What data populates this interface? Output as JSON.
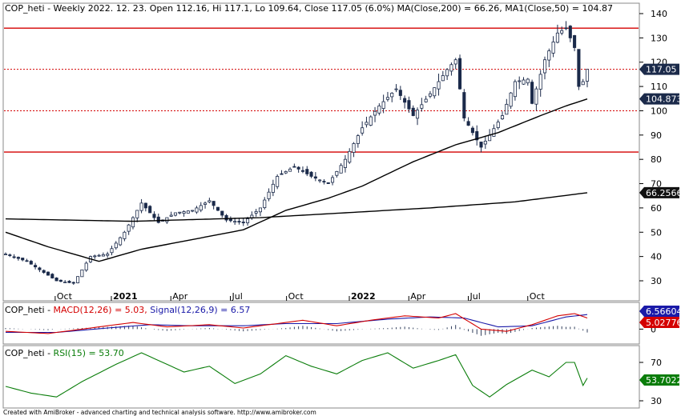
{
  "colors": {
    "hline": "#d40000",
    "candle_up_fill": "#ffffff",
    "candle_down_fill": "#1b2a4a",
    "candle_stroke": "#1b2a4a",
    "ma": "#000000",
    "macd": "#d40000",
    "signal": "#1a1aa8",
    "rsi": "#0a7d0a",
    "tag_dark": "#1b2a4a",
    "tag_red": "#d40000",
    "tag_green": "#0a7d0a"
  },
  "header": {
    "main": "COP_heti - Weekly 2022. 12. 23. Open 112.16, Hi 117.1, Lo 109.64, Close 117.05 (6.0%) MA(Close,200) = 66.26, MA1(Close,50) = 104.87",
    "macd_prefix": "COP_heti - ",
    "macd_label": "MACD(12,26) = 5.03,",
    "signal_label": "Signal(12,26,9) = 6.57",
    "rsi_prefix": "COP_heti - ",
    "rsi_label": "RSI(15) = 53.70"
  },
  "footer": "Created with AmiBroker - advanced charting and technical analysis software. http://www.amibroker.com",
  "price_axis": {
    "ticks": [
      "140",
      "130",
      "120",
      "110",
      "100",
      "90",
      "80",
      "70",
      "60",
      "50",
      "40",
      "30"
    ]
  },
  "macd_axis": {
    "ticks": [
      "0"
    ]
  },
  "rsi_axis": {
    "ticks": [
      "70",
      "30"
    ]
  },
  "x_axis": {
    "labels": [
      "Oct",
      "2021",
      "Apr",
      "Jul",
      "Oct",
      "2022",
      "Apr",
      "Jul",
      "Oct"
    ]
  },
  "tags": {
    "close": "117.05",
    "ma50": "104.873",
    "ma200": "66.2566",
    "signal": "6.56604",
    "macd": "5.02776",
    "rsi": "53.7022"
  },
  "chart_data": {
    "type": "candlestick",
    "timeframe": "weekly",
    "title": "COP_heti - Weekly 2022. 12. 23.",
    "last_bar": {
      "open": 112.16,
      "high": 117.1,
      "low": 109.64,
      "close": 117.05,
      "change_pct": 6.0
    },
    "ylim": [
      24,
      140
    ],
    "horizontal_lines": [
      134,
      117.05,
      100,
      83
    ],
    "anchors": [
      {
        "i": 0,
        "v": 41
      },
      {
        "i": 5,
        "v": 38
      },
      {
        "i": 12,
        "v": 30
      },
      {
        "i": 16,
        "v": 29
      },
      {
        "i": 20,
        "v": 40
      },
      {
        "i": 24,
        "v": 41
      },
      {
        "i": 28,
        "v": 50
      },
      {
        "i": 32,
        "v": 62
      },
      {
        "i": 36,
        "v": 54
      },
      {
        "i": 40,
        "v": 58
      },
      {
        "i": 44,
        "v": 59
      },
      {
        "i": 48,
        "v": 63
      },
      {
        "i": 52,
        "v": 55
      },
      {
        "i": 56,
        "v": 54
      },
      {
        "i": 60,
        "v": 60
      },
      {
        "i": 64,
        "v": 73
      },
      {
        "i": 68,
        "v": 77
      },
      {
        "i": 72,
        "v": 73
      },
      {
        "i": 76,
        "v": 70
      },
      {
        "i": 80,
        "v": 80
      },
      {
        "i": 84,
        "v": 93
      },
      {
        "i": 88,
        "v": 102
      },
      {
        "i": 92,
        "v": 109
      },
      {
        "i": 96,
        "v": 98
      },
      {
        "i": 100,
        "v": 107
      },
      {
        "i": 104,
        "v": 117
      },
      {
        "i": 106,
        "v": 121
      },
      {
        "i": 108,
        "v": 97
      },
      {
        "i": 112,
        "v": 85
      },
      {
        "i": 114,
        "v": 90
      },
      {
        "i": 117,
        "v": 98
      },
      {
        "i": 120,
        "v": 112
      },
      {
        "i": 123,
        "v": 113
      },
      {
        "i": 124,
        "v": 103
      },
      {
        "i": 127,
        "v": 121
      },
      {
        "i": 130,
        "v": 132
      },
      {
        "i": 132,
        "v": 134
      },
      {
        "i": 134,
        "v": 126
      },
      {
        "i": 135,
        "v": 110
      },
      {
        "i": 136,
        "v": 112
      },
      {
        "i": 137,
        "v": 117
      }
    ],
    "ma50_anchors": [
      {
        "i": 0,
        "v": 50
      },
      {
        "i": 10,
        "v": 44
      },
      {
        "i": 22,
        "v": 38
      },
      {
        "i": 32,
        "v": 43
      },
      {
        "i": 44,
        "v": 47
      },
      {
        "i": 56,
        "v": 51
      },
      {
        "i": 66,
        "v": 59
      },
      {
        "i": 76,
        "v": 64
      },
      {
        "i": 84,
        "v": 69
      },
      {
        "i": 96,
        "v": 79
      },
      {
        "i": 106,
        "v": 86
      },
      {
        "i": 116,
        "v": 91
      },
      {
        "i": 126,
        "v": 98
      },
      {
        "i": 132,
        "v": 102
      },
      {
        "i": 137,
        "v": 104.87
      }
    ],
    "ma200_anchors": [
      {
        "i": 0,
        "v": 55.5
      },
      {
        "i": 30,
        "v": 54.5
      },
      {
        "i": 60,
        "v": 56
      },
      {
        "i": 80,
        "v": 58
      },
      {
        "i": 100,
        "v": 60
      },
      {
        "i": 120,
        "v": 62.5
      },
      {
        "i": 137,
        "v": 66.26
      }
    ],
    "macd": {
      "macd": 5.03,
      "signal": 6.57,
      "ylim": [
        -6,
        7
      ]
    },
    "rsi": {
      "period": 15,
      "last": 53.7,
      "ticks": [
        70,
        30
      ]
    },
    "macd_anchors": [
      {
        "i": 0,
        "v": -1
      },
      {
        "i": 10,
        "v": -2
      },
      {
        "i": 20,
        "v": 0.5
      },
      {
        "i": 30,
        "v": 3
      },
      {
        "i": 38,
        "v": 1
      },
      {
        "i": 48,
        "v": 2
      },
      {
        "i": 56,
        "v": 0.5
      },
      {
        "i": 64,
        "v": 2.5
      },
      {
        "i": 70,
        "v": 4
      },
      {
        "i": 78,
        "v": 1.5
      },
      {
        "i": 86,
        "v": 4
      },
      {
        "i": 94,
        "v": 6
      },
      {
        "i": 102,
        "v": 5
      },
      {
        "i": 106,
        "v": 7
      },
      {
        "i": 112,
        "v": 0
      },
      {
        "i": 118,
        "v": -1
      },
      {
        "i": 124,
        "v": 2
      },
      {
        "i": 130,
        "v": 6
      },
      {
        "i": 134,
        "v": 7
      },
      {
        "i": 137,
        "v": 5.03
      }
    ],
    "signal_anchors": [
      {
        "i": 0,
        "v": -1.5
      },
      {
        "i": 12,
        "v": -1.5
      },
      {
        "i": 24,
        "v": 0.5
      },
      {
        "i": 34,
        "v": 2
      },
      {
        "i": 44,
        "v": 1.5
      },
      {
        "i": 56,
        "v": 1.5
      },
      {
        "i": 66,
        "v": 2.5
      },
      {
        "i": 78,
        "v": 2.5
      },
      {
        "i": 90,
        "v": 4.5
      },
      {
        "i": 100,
        "v": 5.5
      },
      {
        "i": 108,
        "v": 5
      },
      {
        "i": 116,
        "v": 1
      },
      {
        "i": 124,
        "v": 1.5
      },
      {
        "i": 132,
        "v": 5.5
      },
      {
        "i": 137,
        "v": 6.57
      }
    ],
    "rsi_anchors": [
      {
        "i": 0,
        "v": 45
      },
      {
        "i": 6,
        "v": 38
      },
      {
        "i": 12,
        "v": 34
      },
      {
        "i": 18,
        "v": 50
      },
      {
        "i": 26,
        "v": 68
      },
      {
        "i": 32,
        "v": 80
      },
      {
        "i": 36,
        "v": 72
      },
      {
        "i": 42,
        "v": 60
      },
      {
        "i": 48,
        "v": 66
      },
      {
        "i": 54,
        "v": 48
      },
      {
        "i": 60,
        "v": 58
      },
      {
        "i": 66,
        "v": 77
      },
      {
        "i": 72,
        "v": 66
      },
      {
        "i": 78,
        "v": 58
      },
      {
        "i": 84,
        "v": 72
      },
      {
        "i": 90,
        "v": 80
      },
      {
        "i": 96,
        "v": 64
      },
      {
        "i": 102,
        "v": 72
      },
      {
        "i": 106,
        "v": 78
      },
      {
        "i": 110,
        "v": 46
      },
      {
        "i": 114,
        "v": 34
      },
      {
        "i": 118,
        "v": 47
      },
      {
        "i": 124,
        "v": 62
      },
      {
        "i": 128,
        "v": 55
      },
      {
        "i": 132,
        "v": 70
      },
      {
        "i": 134,
        "v": 70
      },
      {
        "i": 136,
        "v": 46
      },
      {
        "i": 137,
        "v": 53.7
      }
    ]
  }
}
